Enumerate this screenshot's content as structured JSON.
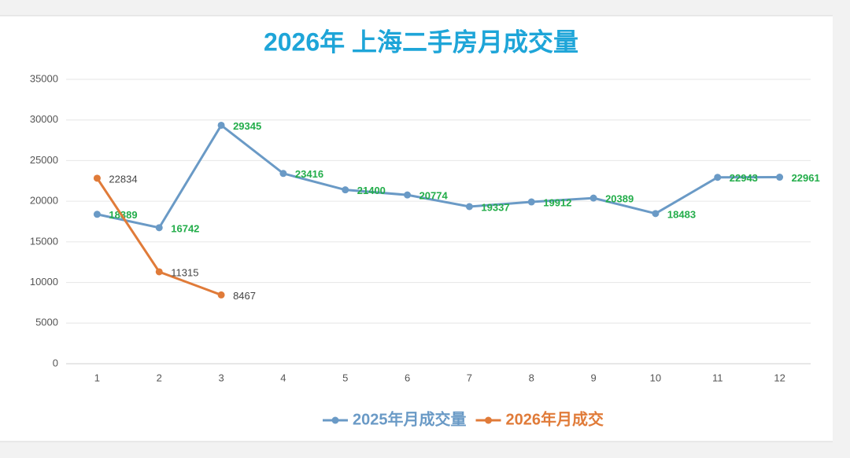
{
  "chart_data": {
    "type": "line",
    "title": "2026年 上海二手房月成交量",
    "categories": [
      "1",
      "2",
      "3",
      "4",
      "5",
      "6",
      "7",
      "8",
      "9",
      "10",
      "11",
      "12"
    ],
    "series": [
      {
        "name": "2025年月成交量",
        "color": "#6a9ac6",
        "label_color": "#23ad4a",
        "values": [
          18389,
          16742,
          29345,
          23416,
          21400,
          20774,
          19337,
          19912,
          20389,
          18483,
          22943,
          22961
        ]
      },
      {
        "name": "2026年月成交",
        "color": "#e07b39",
        "label_color": "#444444",
        "values": [
          22834,
          11315,
          8467,
          null,
          null,
          null,
          null,
          null,
          null,
          null,
          null,
          null
        ]
      }
    ],
    "ylim": [
      0,
      35000
    ],
    "yticks": [
      0,
      5000,
      10000,
      15000,
      20000,
      25000,
      30000,
      35000
    ],
    "grid": true,
    "legend": "bottom"
  }
}
